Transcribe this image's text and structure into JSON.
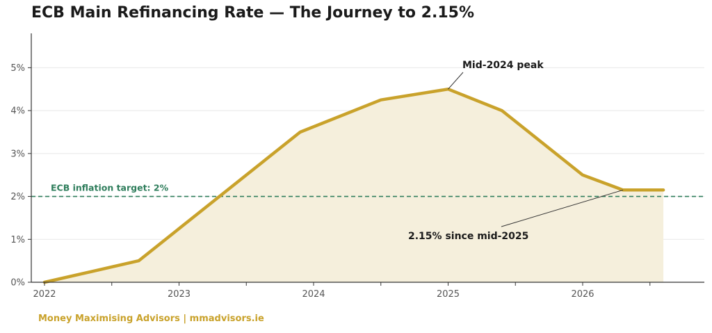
{
  "page": {
    "title": "ECB Main Refinancing Rate — The Journey to 2.15%",
    "footer": "Money Maximising Advisors  |  mmadvisors.ie"
  },
  "colors": {
    "line": "#c9a22b",
    "fill": "#f5efdc",
    "target": "#2e7d5b",
    "axis": "#333333",
    "grid": "#e8e8e8",
    "footer": "#c9a22b"
  },
  "chart_data": {
    "type": "area",
    "title": "ECB Main Refinancing Rate — The Journey to 2.15%",
    "xlabel": "",
    "ylabel": "",
    "x": [
      2022.0,
      2022.7,
      2023.9,
      2024.5,
      2025.0,
      2025.4,
      2026.0,
      2026.3,
      2026.6
    ],
    "y": [
      0.0,
      0.5,
      3.5,
      4.25,
      4.5,
      4.0,
      2.5,
      2.15,
      2.15
    ],
    "xlim": [
      2021.9,
      2026.4
    ],
    "ylim": [
      0,
      5.8
    ],
    "x_ticks": [
      2022,
      2023,
      2024,
      2025,
      2026
    ],
    "x_tick_labels": [
      "2022",
      "2023",
      "2024",
      "2025",
      "2026"
    ],
    "x_minor_ticks": [
      2022.5,
      2023.5,
      2024.5,
      2025.5,
      2026.5
    ],
    "y_ticks": [
      0,
      1,
      2,
      3,
      4,
      5
    ],
    "y_tick_labels": [
      "0%",
      "1%",
      "2%",
      "3%",
      "4%",
      "5%"
    ],
    "grid": "horizontal",
    "reference_line": {
      "y": 2.0,
      "label": "ECB inflation target: 2%",
      "style": "dashed"
    },
    "annotations": [
      {
        "text": "Mid-2024 peak",
        "point": [
          2025.0,
          4.5
        ],
        "text_at": [
          2025.4,
          5.0
        ]
      },
      {
        "text": "2.15% since mid-2025",
        "point": [
          2026.3,
          2.15
        ],
        "text_at": [
          2025.2,
          1.0
        ]
      }
    ]
  }
}
